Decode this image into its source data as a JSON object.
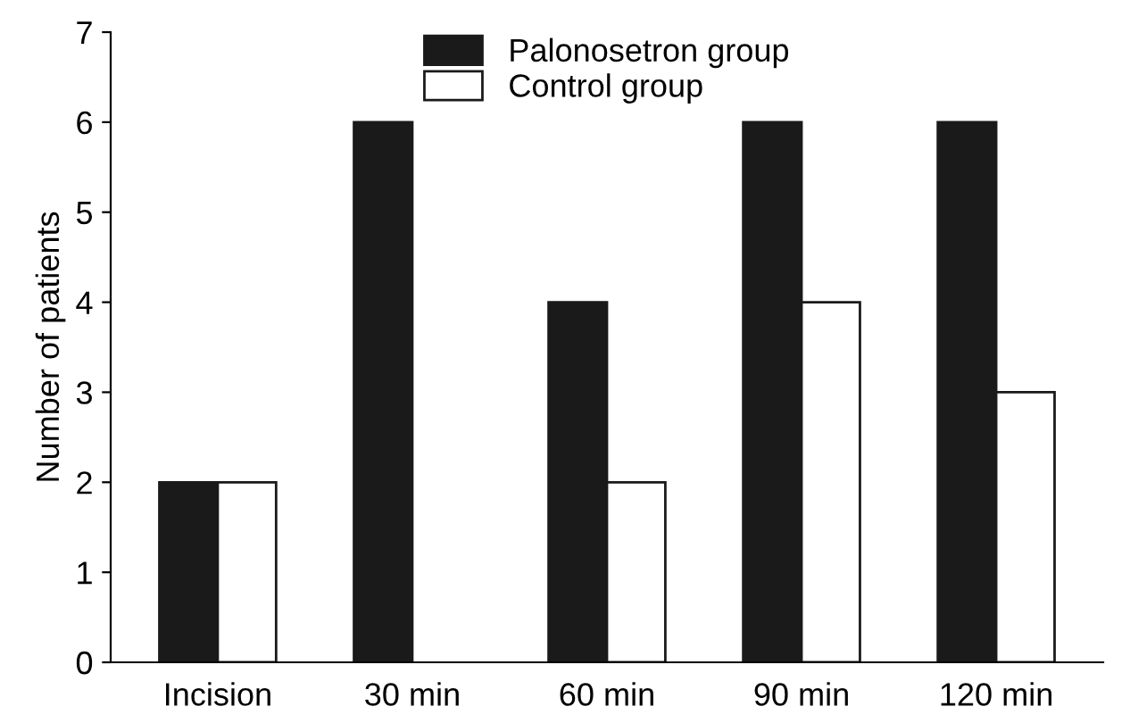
{
  "chart_data": {
    "type": "bar",
    "ylabel": "Number of patients",
    "categories": [
      "Incision",
      "30 min",
      "60 min",
      "90 min",
      "120 min"
    ],
    "series": [
      {
        "name": "Palonosetron group",
        "color": "#1a1a1a",
        "values": [
          2,
          6,
          4,
          6,
          6
        ]
      },
      {
        "name": "Control group",
        "color": "#ffffff",
        "values": [
          2,
          0,
          2,
          4,
          3
        ]
      }
    ],
    "ylim": [
      0,
      7
    ],
    "yticks": [
      0,
      1,
      2,
      3,
      4,
      5,
      6,
      7
    ],
    "grid": false,
    "legend": "top"
  }
}
